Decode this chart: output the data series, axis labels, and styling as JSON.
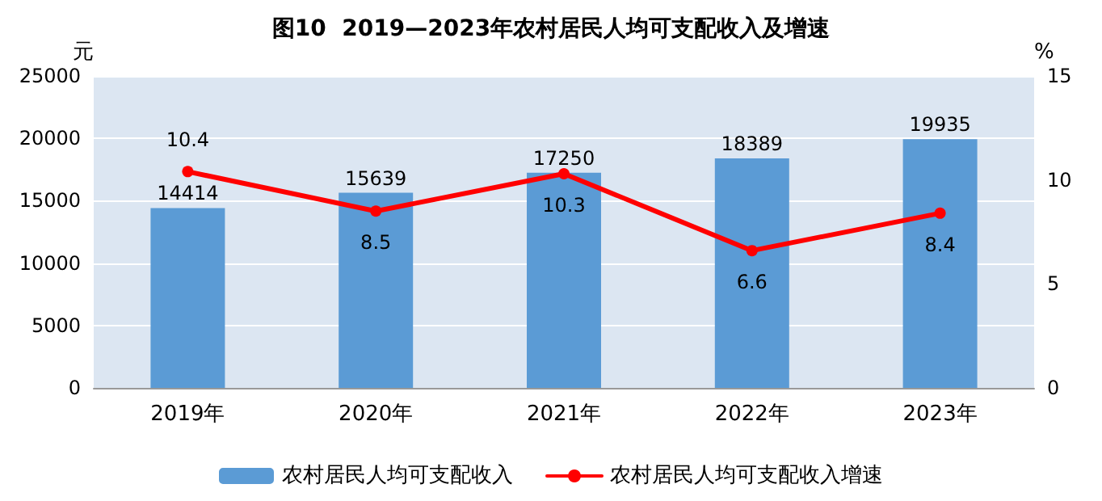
{
  "chart_data": {
    "type": "bar",
    "title": "图10  2019—2023年农村居民人均可支配收入及增速",
    "ylabel": "元",
    "y2label": "%",
    "categories": [
      "2019年",
      "2020年",
      "2021年",
      "2022年",
      "2023年"
    ],
    "series": [
      {
        "name": "农村居民人均可支配收入",
        "color": "#5b9bd5",
        "values": [
          14414,
          15639,
          17250,
          18389,
          19935
        ]
      },
      {
        "name": "农村居民人均可支配收入增速",
        "type": "line",
        "axis": "y2",
        "color": "#ff0000",
        "marker": "circle",
        "values": [
          10.4,
          8.5,
          10.3,
          6.6,
          8.4
        ]
      }
    ],
    "ylim": [
      0,
      25000
    ],
    "yticks": [
      0,
      5000,
      10000,
      15000,
      20000,
      25000
    ],
    "y2lim": [
      0,
      15
    ],
    "y2ticks": [
      0,
      5,
      10,
      15
    ],
    "grid": "y",
    "legend": "bottom",
    "data_labels": true
  }
}
